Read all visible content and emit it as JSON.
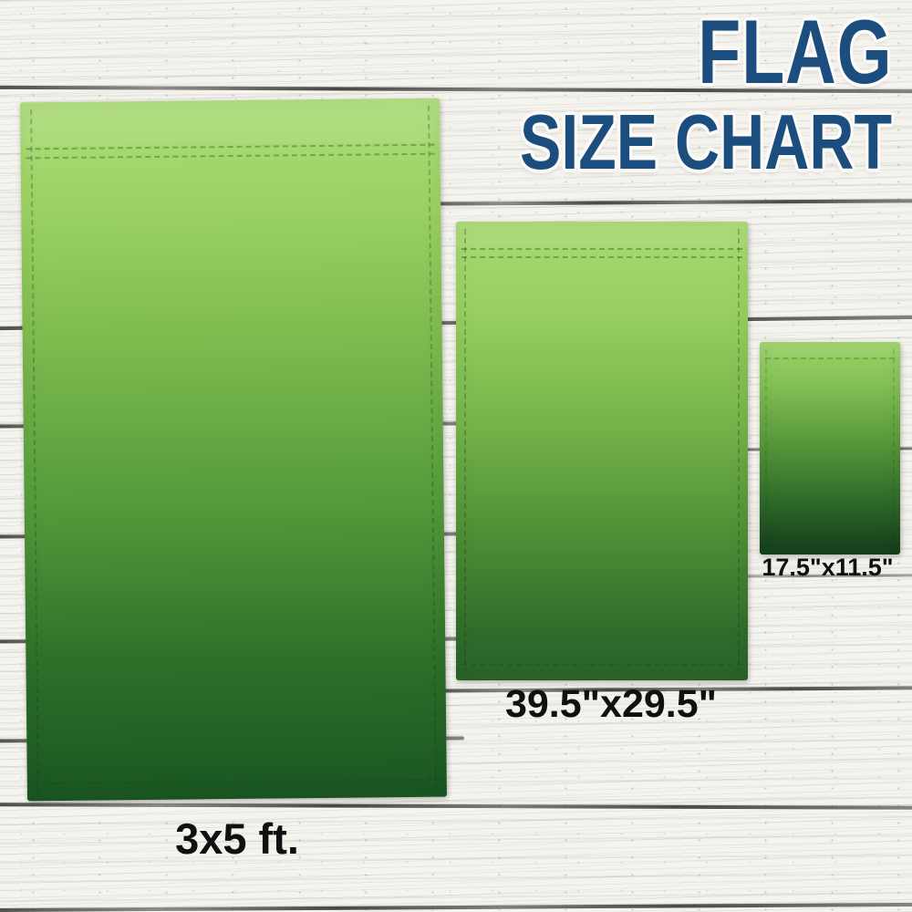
{
  "title": {
    "line1": "FLAG",
    "line2": "SIZE CHART"
  },
  "flags": [
    {
      "size_label": "3x5 ft."
    },
    {
      "size_label": "39.5\"x29.5\""
    },
    {
      "size_label": "17.5\"x11.5\""
    }
  ],
  "colors": {
    "title_navy": "#1c4d7f",
    "label_text": "#101010",
    "flag_green_light": "#a9da73",
    "flag_green_dark": "#1d5a23",
    "wood_base": "#f4f3ee",
    "plank_seam": "#2c2a24"
  }
}
